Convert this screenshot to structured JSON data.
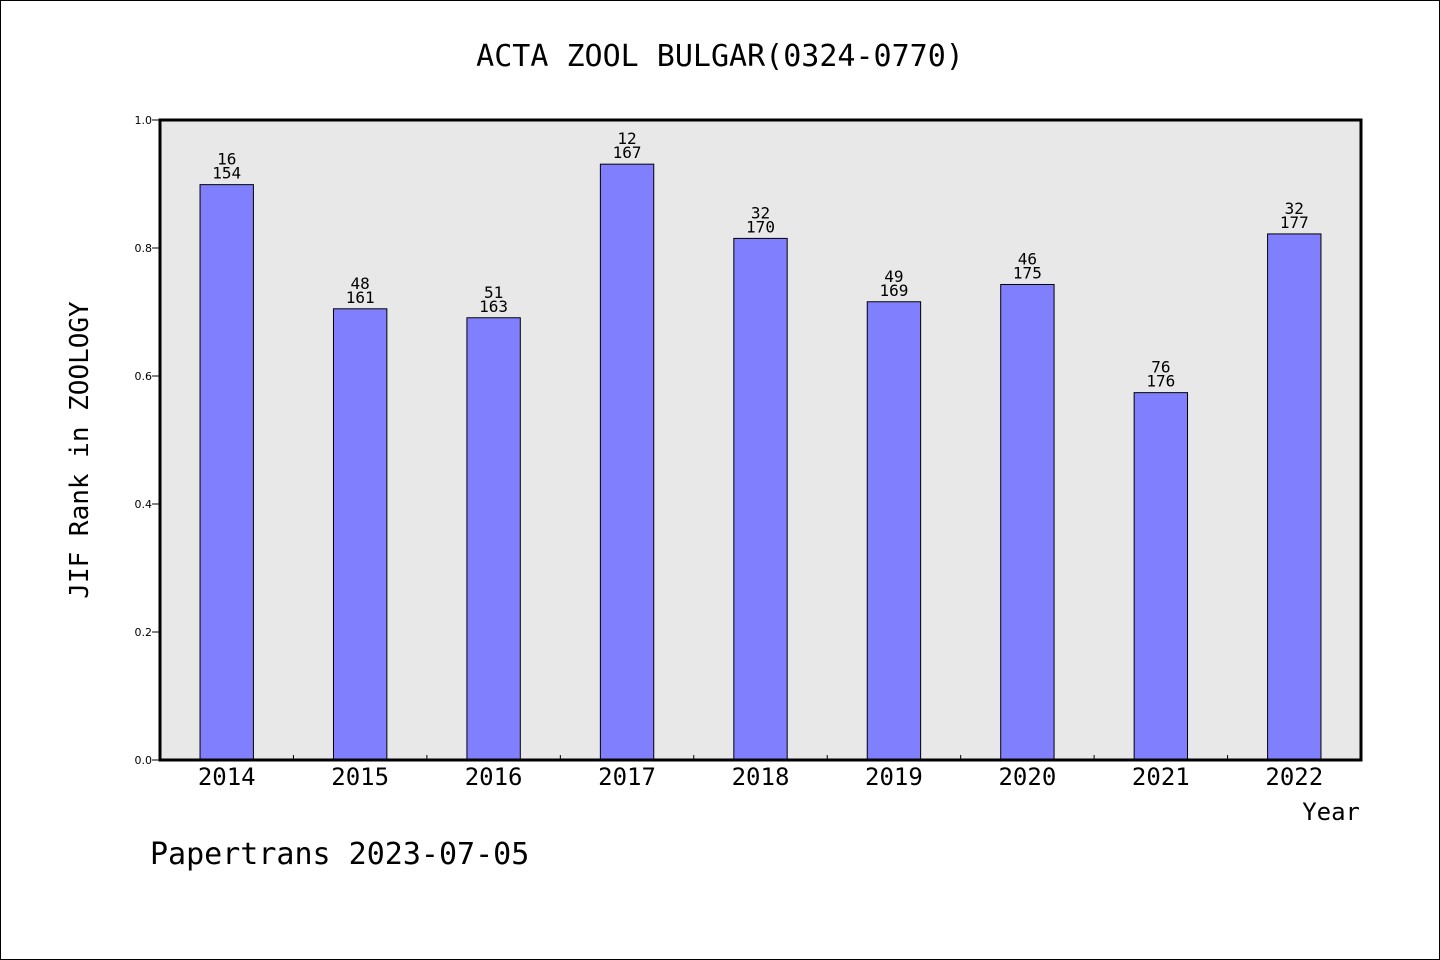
{
  "footer": {
    "text": "Papertrans 2023-07-05"
  },
  "chart_data": {
    "type": "bar",
    "title": "ACTA ZOOL BULGAR(0324-0770)",
    "xlabel": "Year",
    "ylabel": "JIF Rank in ZOOLOGY",
    "ylim": [
      0.0,
      1.0
    ],
    "yticks": [
      "0.0",
      "0.2",
      "0.4",
      "0.6",
      "0.8",
      "1.0"
    ],
    "categories": [
      "2014",
      "2015",
      "2016",
      "2017",
      "2018",
      "2019",
      "2020",
      "2021",
      "2022"
    ],
    "values": [
      0.899,
      0.705,
      0.691,
      0.931,
      0.815,
      0.716,
      0.743,
      0.574,
      0.822
    ],
    "rank": [
      "16",
      "48",
      "51",
      "12",
      "32",
      "49",
      "46",
      "76",
      "32"
    ],
    "total": [
      "154",
      "161",
      "163",
      "167",
      "170",
      "169",
      "175",
      "176",
      "177"
    ],
    "bar_color": "#8080ff",
    "plot_background": "#e8e8e8",
    "grid": false,
    "legend": "none"
  }
}
